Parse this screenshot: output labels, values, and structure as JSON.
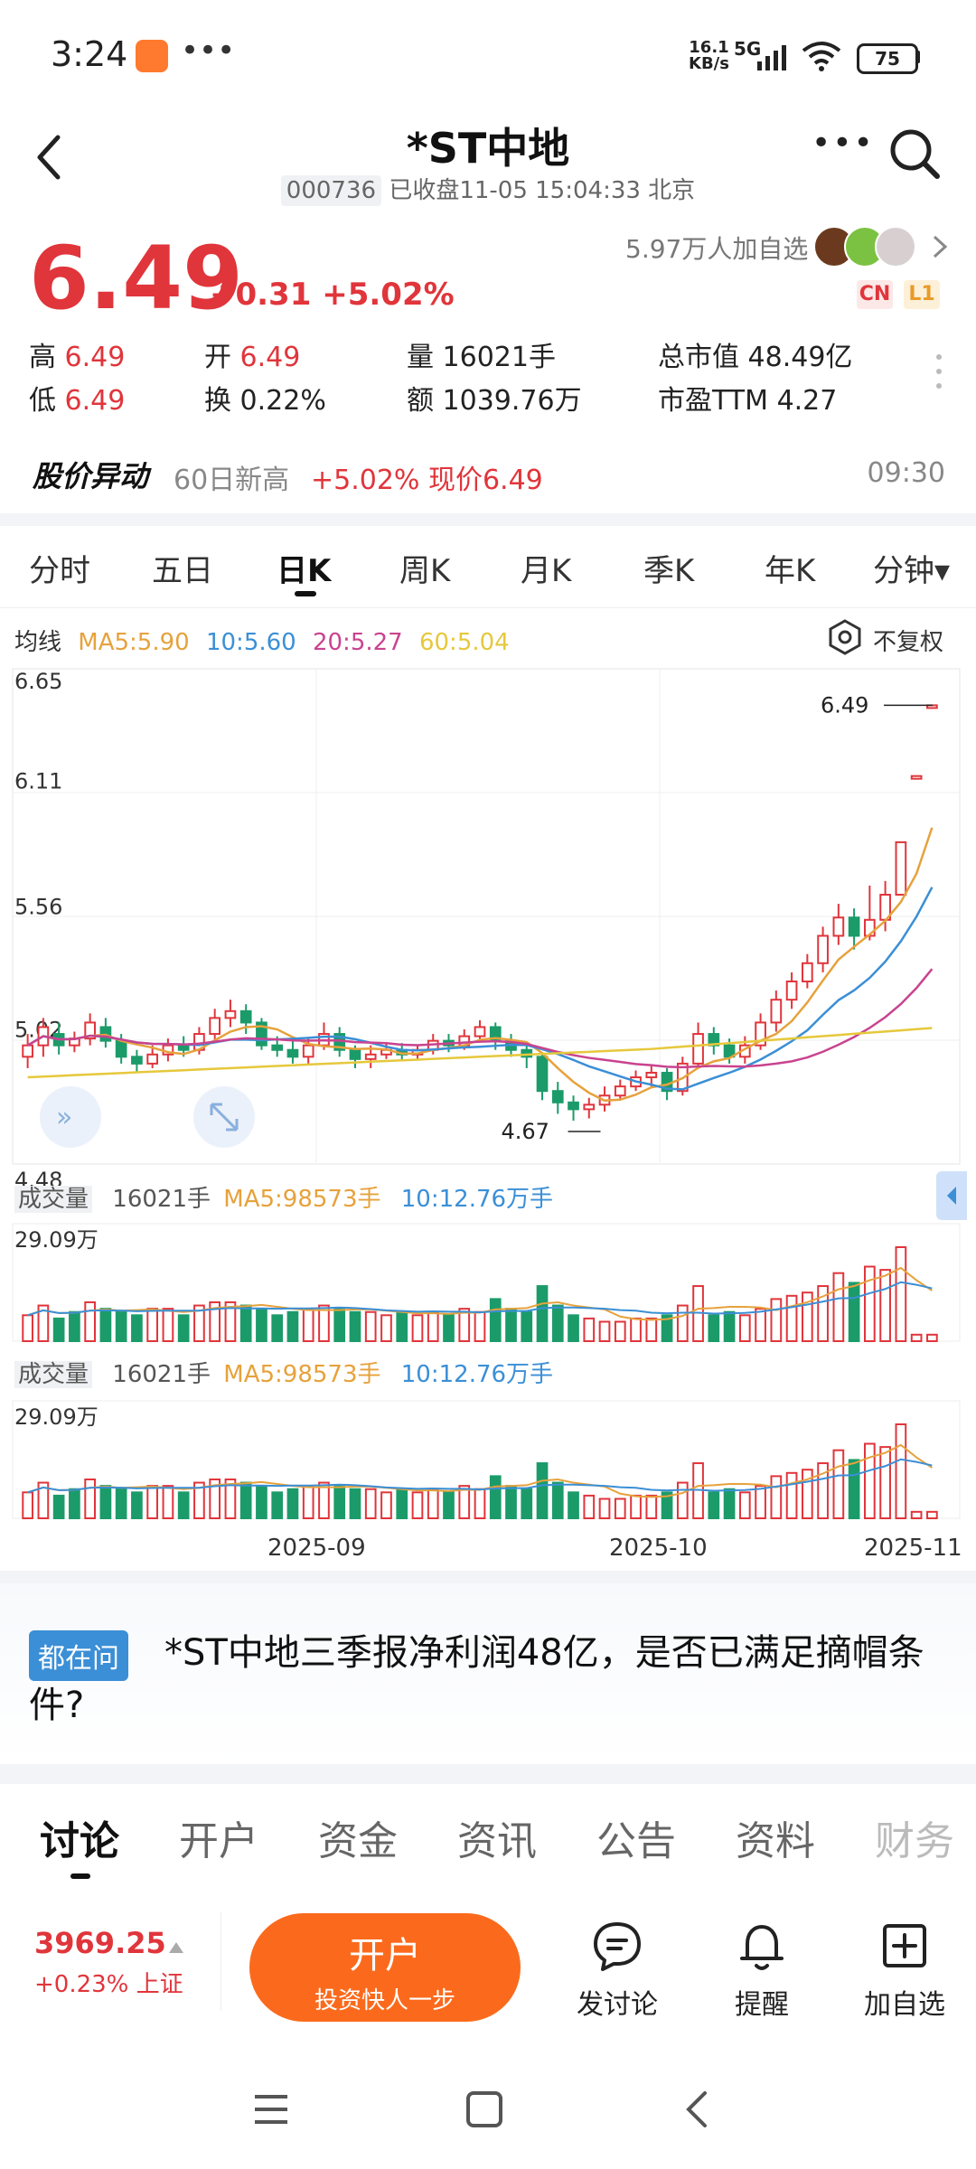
{
  "status": {
    "time": "3:24",
    "net_speed_top": "16.1",
    "net_speed_bottom": "KB/s",
    "network": "5G",
    "battery": "75"
  },
  "header": {
    "title": "*ST中地",
    "code": "000736",
    "status_line": "已收盘11-05 15:04:33 北京"
  },
  "quote": {
    "price": "6.49",
    "change": "+0.31",
    "change_pct": "+5.02%",
    "followers": "5.97万人加自选",
    "badge_cn": "CN",
    "badge_l1": "L1",
    "stats": [
      {
        "label": "高",
        "value": "6.49",
        "red": true
      },
      {
        "label": "开",
        "value": "6.49",
        "red": true
      },
      {
        "label": "量",
        "value": "16021手",
        "red": false
      },
      {
        "label": "总市值",
        "value": "48.49亿",
        "red": false
      },
      {
        "label": "低",
        "value": "6.49",
        "red": true
      },
      {
        "label": "换",
        "value": "0.22%",
        "red": false
      },
      {
        "label": "额",
        "value": "1039.76万",
        "red": false
      },
      {
        "label": "市盈TTM",
        "value": "4.27",
        "red": false
      }
    ]
  },
  "alert": {
    "title": "股价异动",
    "text_gray": "60日新高",
    "text_red": "+5.02% 现价6.49",
    "time": "09:30"
  },
  "ktabs": [
    "分时",
    "五日",
    "日K",
    "周K",
    "月K",
    "季K",
    "年K",
    "分钟▾"
  ],
  "ma": {
    "label": "均线",
    "ma5": "MA5:5.90",
    "ma10": "10:5.60",
    "ma20": "20:5.27",
    "ma60": "60:5.04",
    "fq": "不复权"
  },
  "volume_panel": {
    "label": "成交量",
    "vol": "16021手",
    "ma5": "MA5:98573手",
    "ma10": "10:12.76万手",
    "max": "29.09万"
  },
  "colors": {
    "up": "#e0353b",
    "down": "#1c9b6a",
    "ma5": "#e6a23c",
    "ma10": "#3b8fd6",
    "ma20": "#c9438f",
    "ma60": "#e6c83c",
    "accent": "#fb6a1c"
  },
  "chart_data": {
    "type": "candlestick",
    "y_ticks": [
      "6.65",
      "6.11",
      "5.56",
      "5.02",
      "4.48"
    ],
    "ylim": [
      4.48,
      6.65
    ],
    "x_ticks": [
      "2025-09",
      "2025-10",
      "2025-11"
    ],
    "high_label": "6.49",
    "low_label": "4.67",
    "candles": [
      [
        4.95,
        5.0,
        5.05,
        4.9
      ],
      [
        5.0,
        5.08,
        5.12,
        4.95
      ],
      [
        5.05,
        5.0,
        5.1,
        4.96
      ],
      [
        5.0,
        5.03,
        5.06,
        4.97
      ],
      [
        5.03,
        5.1,
        5.14,
        5.0
      ],
      [
        5.08,
        5.02,
        5.12,
        4.99
      ],
      [
        5.02,
        4.95,
        5.05,
        4.92
      ],
      [
        4.95,
        4.92,
        4.98,
        4.88
      ],
      [
        4.92,
        4.96,
        5.0,
        4.9
      ],
      [
        4.96,
        5.0,
        5.03,
        4.93
      ],
      [
        5.0,
        4.98,
        5.04,
        4.95
      ],
      [
        4.98,
        5.05,
        5.08,
        4.96
      ],
      [
        5.05,
        5.12,
        5.16,
        5.02
      ],
      [
        5.12,
        5.15,
        5.2,
        5.08
      ],
      [
        5.15,
        5.1,
        5.18,
        5.05
      ],
      [
        5.1,
        5.0,
        5.12,
        4.98
      ],
      [
        5.0,
        4.98,
        5.04,
        4.95
      ],
      [
        4.98,
        4.95,
        5.02,
        4.92
      ],
      [
        4.95,
        5.0,
        5.03,
        4.92
      ],
      [
        5.0,
        5.05,
        5.1,
        4.98
      ],
      [
        5.05,
        4.98,
        5.08,
        4.95
      ],
      [
        4.98,
        4.94,
        5.0,
        4.9
      ],
      [
        4.94,
        4.96,
        5.0,
        4.9
      ],
      [
        4.96,
        4.98,
        5.01,
        4.94
      ],
      [
        4.98,
        4.96,
        5.01,
        4.93
      ],
      [
        4.96,
        4.98,
        5.0,
        4.94
      ],
      [
        4.98,
        5.02,
        5.05,
        4.96
      ],
      [
        5.02,
        5.0,
        5.05,
        4.97
      ],
      [
        5.0,
        5.04,
        5.07,
        4.98
      ],
      [
        5.04,
        5.08,
        5.11,
        5.02
      ],
      [
        5.08,
        5.02,
        5.1,
        4.98
      ],
      [
        5.02,
        4.98,
        5.05,
        4.95
      ],
      [
        4.98,
        4.95,
        5.0,
        4.9
      ],
      [
        4.95,
        4.8,
        4.97,
        4.76
      ],
      [
        4.8,
        4.75,
        4.84,
        4.7
      ],
      [
        4.75,
        4.72,
        4.78,
        4.67
      ],
      [
        4.72,
        4.74,
        4.77,
        4.68
      ],
      [
        4.74,
        4.78,
        4.82,
        4.71
      ],
      [
        4.78,
        4.82,
        4.85,
        4.76
      ],
      [
        4.82,
        4.86,
        4.89,
        4.8
      ],
      [
        4.86,
        4.88,
        4.91,
        4.82
      ],
      [
        4.88,
        4.8,
        4.9,
        4.76
      ],
      [
        4.8,
        4.92,
        4.95,
        4.78
      ],
      [
        4.92,
        5.05,
        5.1,
        4.9
      ],
      [
        5.05,
        5.0,
        5.08,
        4.96
      ],
      [
        5.0,
        4.95,
        5.03,
        4.92
      ],
      [
        4.95,
        5.0,
        5.04,
        4.92
      ],
      [
        5.0,
        5.1,
        5.14,
        4.98
      ],
      [
        5.1,
        5.2,
        5.24,
        5.06
      ],
      [
        5.2,
        5.28,
        5.32,
        5.16
      ],
      [
        5.28,
        5.36,
        5.4,
        5.25
      ],
      [
        5.36,
        5.48,
        5.52,
        5.32
      ],
      [
        5.48,
        5.56,
        5.62,
        5.44
      ],
      [
        5.56,
        5.48,
        5.6,
        5.42
      ],
      [
        5.48,
        5.55,
        5.7,
        5.46
      ],
      [
        5.55,
        5.66,
        5.72,
        5.5
      ],
      [
        5.66,
        5.89,
        5.89,
        5.66
      ],
      [
        6.18,
        6.18,
        6.18,
        6.18
      ],
      [
        6.49,
        6.49,
        6.49,
        6.49
      ]
    ],
    "volumes": [
      [
        8,
        1
      ],
      [
        11,
        1
      ],
      [
        7,
        0
      ],
      [
        9,
        0
      ],
      [
        12,
        1
      ],
      [
        10,
        0
      ],
      [
        9,
        0
      ],
      [
        8,
        0
      ],
      [
        10,
        1
      ],
      [
        10,
        1
      ],
      [
        8,
        0
      ],
      [
        11,
        1
      ],
      [
        12,
        1
      ],
      [
        12,
        1
      ],
      [
        11,
        0
      ],
      [
        10,
        0
      ],
      [
        8,
        0
      ],
      [
        9,
        0
      ],
      [
        10,
        1
      ],
      [
        11,
        1
      ],
      [
        10,
        0
      ],
      [
        9,
        0
      ],
      [
        9,
        1
      ],
      [
        8,
        1
      ],
      [
        9,
        0
      ],
      [
        8,
        1
      ],
      [
        9,
        1
      ],
      [
        8,
        0
      ],
      [
        10,
        1
      ],
      [
        9,
        1
      ],
      [
        13,
        0
      ],
      [
        10,
        0
      ],
      [
        9,
        0
      ],
      [
        17,
        0
      ],
      [
        11,
        0
      ],
      [
        8,
        0
      ],
      [
        7,
        1
      ],
      [
        6,
        1
      ],
      [
        6,
        1
      ],
      [
        7,
        1
      ],
      [
        7,
        1
      ],
      [
        8,
        0
      ],
      [
        11,
        1
      ],
      [
        17,
        1
      ],
      [
        8,
        0
      ],
      [
        9,
        0
      ],
      [
        8,
        1
      ],
      [
        10,
        1
      ],
      [
        13,
        1
      ],
      [
        14,
        1
      ],
      [
        15,
        1
      ],
      [
        17,
        1
      ],
      [
        21,
        1
      ],
      [
        18,
        0
      ],
      [
        23,
        1
      ],
      [
        22,
        1
      ],
      [
        29,
        1
      ],
      [
        2,
        1
      ],
      [
        2,
        1
      ]
    ]
  },
  "question": {
    "tag": "都在问",
    "text": "*ST中地三季报净利润48亿，是否已满足摘帽条件?"
  },
  "bottom_tabs": [
    "讨论",
    "开户",
    "资金",
    "资讯",
    "公告",
    "资料",
    "财务"
  ],
  "bottom_bar": {
    "index_value": "3969.25",
    "index_change": "+0.23% 上证",
    "open_main": "开户",
    "open_sub": "投资快人一步",
    "discuss": "发讨论",
    "remind": "提醒",
    "add": "加自选"
  }
}
